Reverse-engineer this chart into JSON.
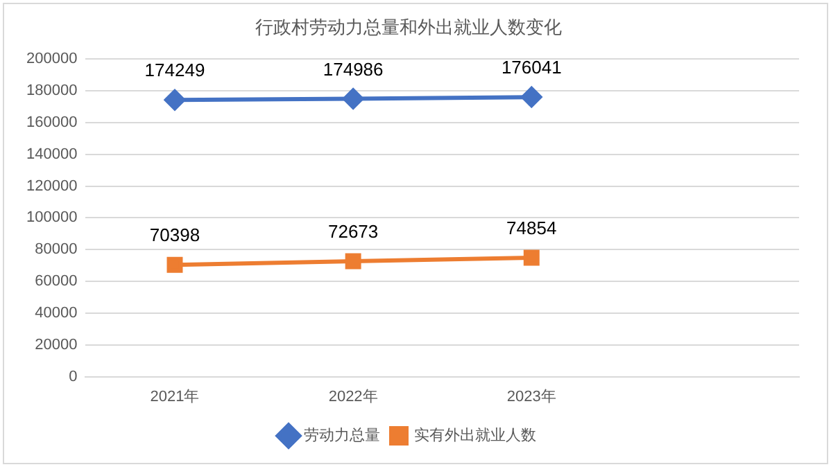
{
  "chart_data": {
    "type": "line",
    "title": "行政村劳动力总量和外出就业人数变化",
    "categories": [
      "2021年",
      "2022年",
      "2023年",
      null
    ],
    "series": [
      {
        "name": "劳动力总量",
        "color": "#4472c4",
        "marker": "diamond",
        "values": [
          174249,
          174986,
          176041,
          null
        ]
      },
      {
        "name": "实有外出就业人数",
        "color": "#ed7d31",
        "marker": "square",
        "values": [
          70398,
          72673,
          74854,
          null
        ]
      }
    ],
    "ylim": [
      0,
      200000
    ],
    "yticks": [
      0,
      20000,
      40000,
      60000,
      80000,
      100000,
      120000,
      140000,
      160000,
      180000,
      200000
    ],
    "grid": "y",
    "legend": "bottom",
    "data_labels": true,
    "line_style": "solid"
  }
}
